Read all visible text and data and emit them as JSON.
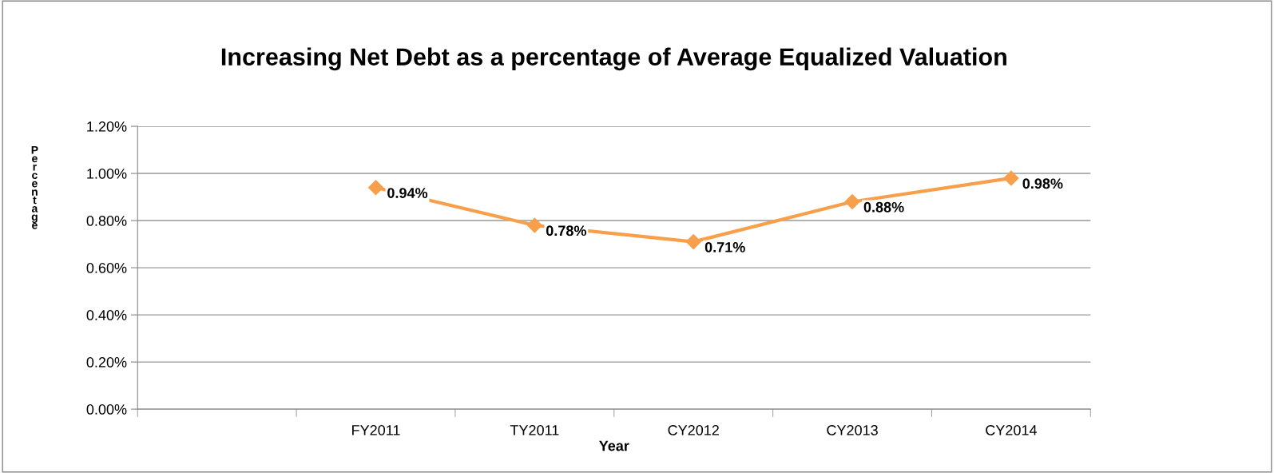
{
  "chart_data": {
    "type": "line",
    "title": "Increasing Net Debt as a percentage of Average Equalized Valuation",
    "xlabel": "Year",
    "ylabel": "Percentage",
    "categories": [
      null,
      "FY2011",
      "TY2011",
      "CY2012",
      "CY2013",
      "CY2014"
    ],
    "series": [
      {
        "color": "#f79f4a",
        "values": [
          null,
          0.94,
          0.78,
          0.71,
          0.88,
          0.98
        ],
        "value_labels": [
          null,
          "0.94%",
          "0.78%",
          "0.71%",
          "0.88%",
          "0.98%"
        ]
      }
    ],
    "ylim": [
      0,
      1.2
    ],
    "yticks": [
      {
        "value": 0,
        "label": "0.00%"
      },
      {
        "value": 0.2,
        "label": "0.20%"
      },
      {
        "value": 0.4,
        "label": "0.40%"
      },
      {
        "value": 0.6,
        "label": "0.60%"
      },
      {
        "value": 0.8,
        "label": "0.80%"
      },
      {
        "value": 1.0,
        "label": "1.00%"
      },
      {
        "value": 1.2,
        "label": "1.20%"
      }
    ],
    "grid": "y",
    "marker": "diamond",
    "line_style": "solid",
    "legend": false
  }
}
